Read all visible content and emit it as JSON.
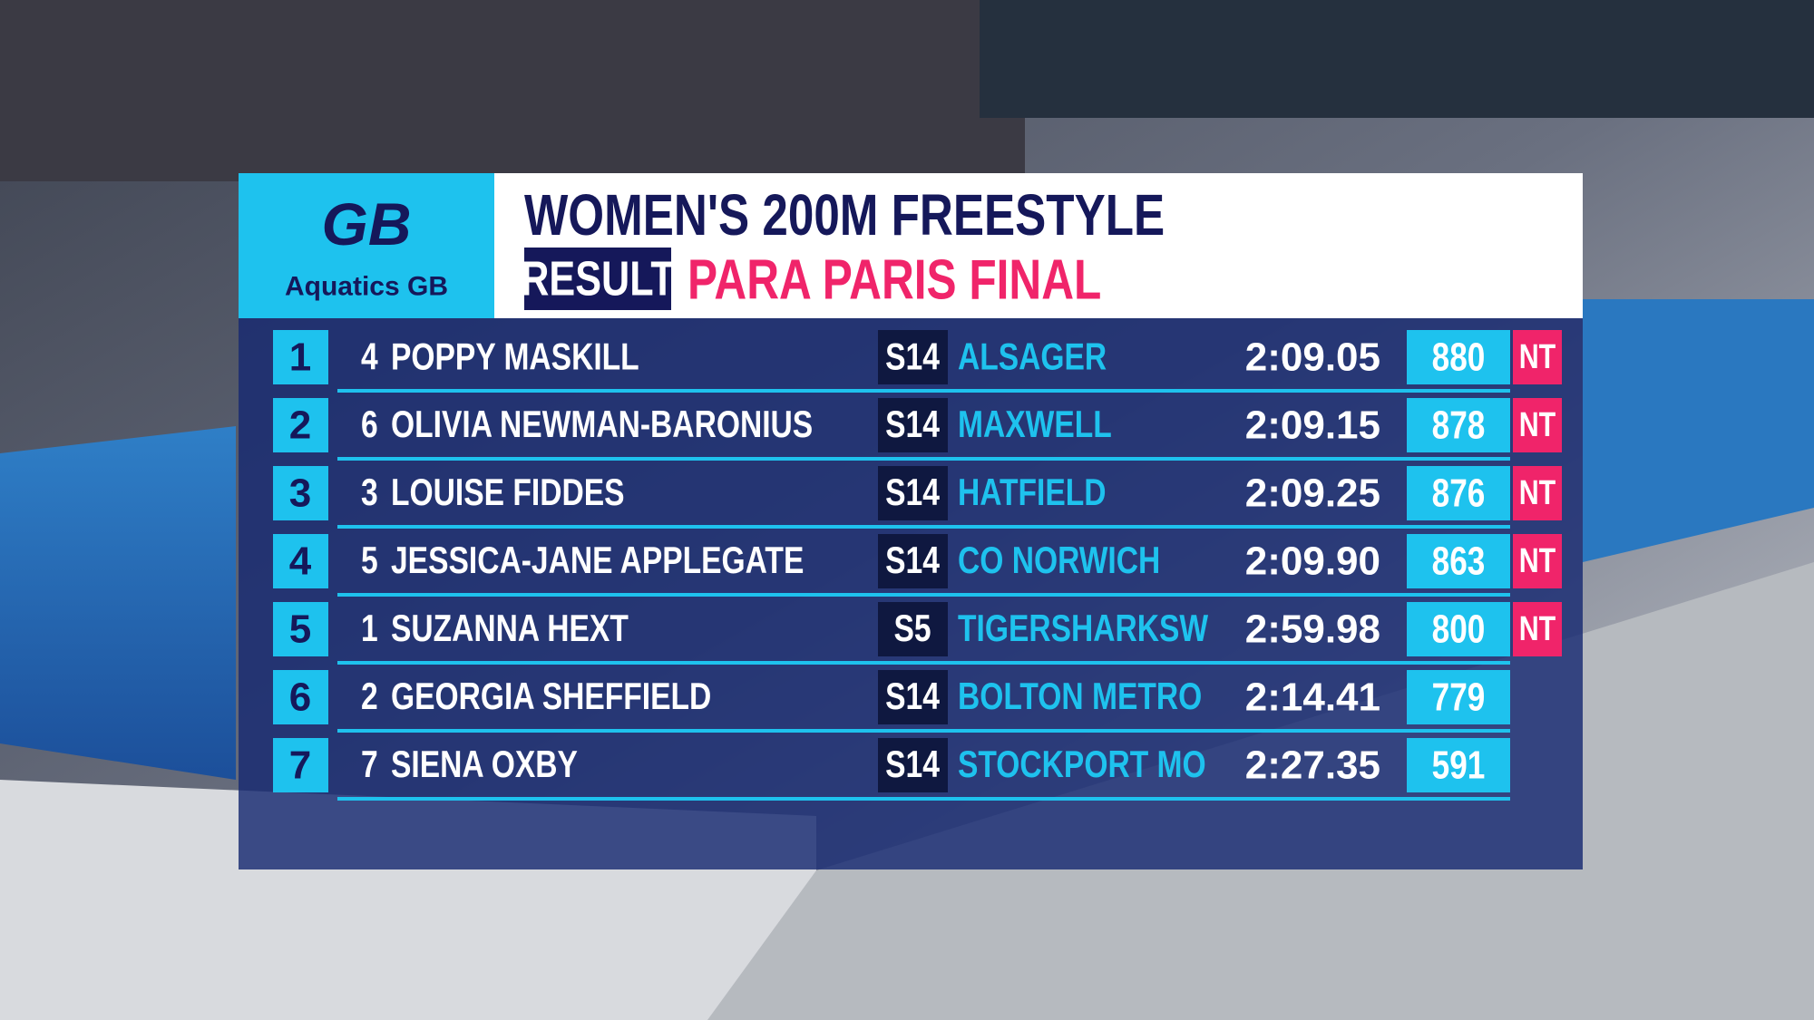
{
  "logo": {
    "mark": "GB",
    "text": "Aquatics GB"
  },
  "header": {
    "title": "WOMEN'S 200M FREESTYLE",
    "label": "RESULT",
    "subtitle": "PARA PARIS FINAL"
  },
  "results": [
    {
      "position": 1,
      "lane": 4,
      "name": "POPPY MASKILL",
      "class": "S14",
      "club": "ALSAGER",
      "time": "2:09.05",
      "points": 880,
      "record": "NT"
    },
    {
      "position": 2,
      "lane": 6,
      "name": "OLIVIA NEWMAN-BARONIUS",
      "class": "S14",
      "club": "MAXWELL",
      "time": "2:09.15",
      "points": 878,
      "record": "NT"
    },
    {
      "position": 3,
      "lane": 3,
      "name": "LOUISE FIDDES",
      "class": "S14",
      "club": "HATFIELD",
      "time": "2:09.25",
      "points": 876,
      "record": "NT"
    },
    {
      "position": 4,
      "lane": 5,
      "name": "JESSICA-JANE APPLEGATE",
      "class": "S14",
      "club": "CO NORWICH",
      "time": "2:09.90",
      "points": 863,
      "record": "NT"
    },
    {
      "position": 5,
      "lane": 1,
      "name": "SUZANNA HEXT",
      "class": "S5",
      "club": "TIGERSHARKSW",
      "time": "2:59.98",
      "points": 800,
      "record": "NT"
    },
    {
      "position": 6,
      "lane": 2,
      "name": "GEORGIA SHEFFIELD",
      "class": "S14",
      "club": "BOLTON METRO",
      "time": "2:14.41",
      "points": 779
    },
    {
      "position": 7,
      "lane": 7,
      "name": "SIENA OXBY",
      "class": "S14",
      "club": "STOCKPORT MO",
      "time": "2:27.35",
      "points": 591
    }
  ]
}
